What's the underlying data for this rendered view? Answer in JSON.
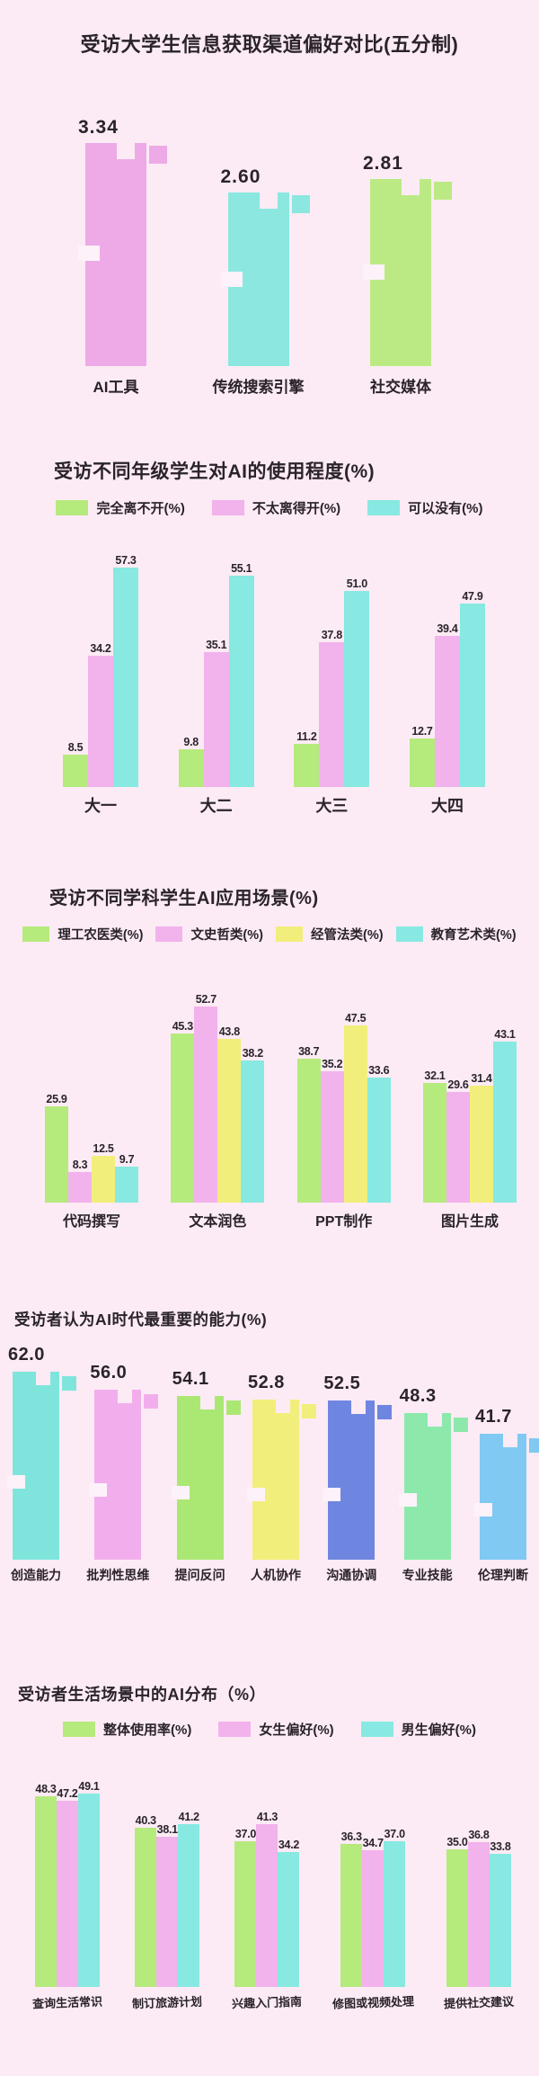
{
  "page": {
    "background": "#fcebf4",
    "text_color": "#2a232b"
  },
  "chart_data": [
    {
      "type": "bar",
      "title": "受访大学生信息获取渠道偏好对比(五分制)",
      "title_align": "center",
      "categories": [
        "AI工具",
        "传统搜索引擎",
        "社交媒体"
      ],
      "series": [
        {
          "name": null,
          "values": [
            3.34,
            2.6,
            2.81
          ]
        }
      ],
      "bar_colors": [
        "#edaae7",
        "#8be7e0",
        "#bbea85"
      ],
      "value_decimals": 2,
      "ylim": [
        0,
        3.4
      ],
      "legend": false,
      "grid": false,
      "decorated": true
    },
    {
      "type": "bar",
      "title": "受访不同年级学生对AI的使用程度(%)",
      "title_align": "left",
      "categories": [
        "大一",
        "大二",
        "大三",
        "大四"
      ],
      "series": [
        {
          "name": "完全离不开(%)",
          "color": "#b5ea7c",
          "values": [
            8.5,
            9.8,
            11.2,
            12.7
          ]
        },
        {
          "name": "不太离得开(%)",
          "color": "#f2b2ec",
          "values": [
            34.2,
            35.1,
            37.8,
            39.4
          ]
        },
        {
          "name": "可以没有(%)",
          "color": "#87e9e1",
          "values": [
            57.3,
            55.1,
            51.0,
            47.9
          ]
        }
      ],
      "value_decimals": 1,
      "ylim": [
        0,
        60
      ],
      "legend_position": "top",
      "grid": false,
      "decorated": false
    },
    {
      "type": "bar",
      "title": "受访不同学科学生AI应用场景(%)",
      "title_align": "left",
      "categories": [
        "代码撰写",
        "文本润色",
        "PPT制作",
        "图片生成"
      ],
      "series": [
        {
          "name": "理工农医类(%)",
          "color": "#b5ea7c",
          "values": [
            25.9,
            45.3,
            38.7,
            32.1
          ]
        },
        {
          "name": "文史哲类(%)",
          "color": "#f2b2ec",
          "values": [
            8.3,
            52.7,
            35.2,
            29.6
          ]
        },
        {
          "name": "经管法类(%)",
          "color": "#f2ee7b",
          "values": [
            12.5,
            43.8,
            47.5,
            31.4
          ]
        },
        {
          "name": "教育艺术类(%)",
          "color": "#87e9e1",
          "values": [
            9.7,
            38.2,
            33.6,
            43.1
          ]
        }
      ],
      "value_decimals": 1,
      "ylim": [
        0,
        55
      ],
      "legend_position": "top",
      "grid": false,
      "decorated": false
    },
    {
      "type": "bar",
      "title": "受访者认为AI时代最重要的能力(%)",
      "title_align": "left",
      "categories": [
        "创造能力",
        "批判性思维",
        "提问反问",
        "人机协作",
        "沟通协调",
        "专业技能",
        "伦理判断"
      ],
      "series": [
        {
          "name": null,
          "values": [
            62.0,
            56.0,
            54.1,
            52.8,
            52.5,
            48.3,
            41.7
          ]
        }
      ],
      "bar_colors": [
        "#7fe5dc",
        "#f2aeec",
        "#abe873",
        "#f2ee7b",
        "#6e86e0",
        "#8ce9ab",
        "#7fc9f2"
      ],
      "value_decimals": 1,
      "ylim": [
        0,
        65
      ],
      "legend": false,
      "grid": false,
      "decorated": true
    },
    {
      "type": "bar",
      "title": "受访者生活场景中的AI分布（%）",
      "title_align": "left",
      "categories": [
        "查询生活常识",
        "制订旅游计划",
        "兴趣入门指南",
        "修图或视频处理",
        "提供社交建议"
      ],
      "series": [
        {
          "name": "整体使用率(%)",
          "color": "#b5ea7c",
          "values": [
            48.3,
            40.3,
            37.0,
            36.3,
            35.0
          ]
        },
        {
          "name": "女生偏好(%)",
          "color": "#f2b2ec",
          "values": [
            47.2,
            38.1,
            41.3,
            34.7,
            36.8
          ]
        },
        {
          "name": "男生偏好(%)",
          "color": "#87e9e1",
          "values": [
            49.1,
            41.2,
            34.2,
            37.0,
            33.8
          ]
        }
      ],
      "value_decimals": 1,
      "ylim": [
        0,
        52
      ],
      "legend_position": "top",
      "grid": false,
      "decorated": false
    }
  ]
}
